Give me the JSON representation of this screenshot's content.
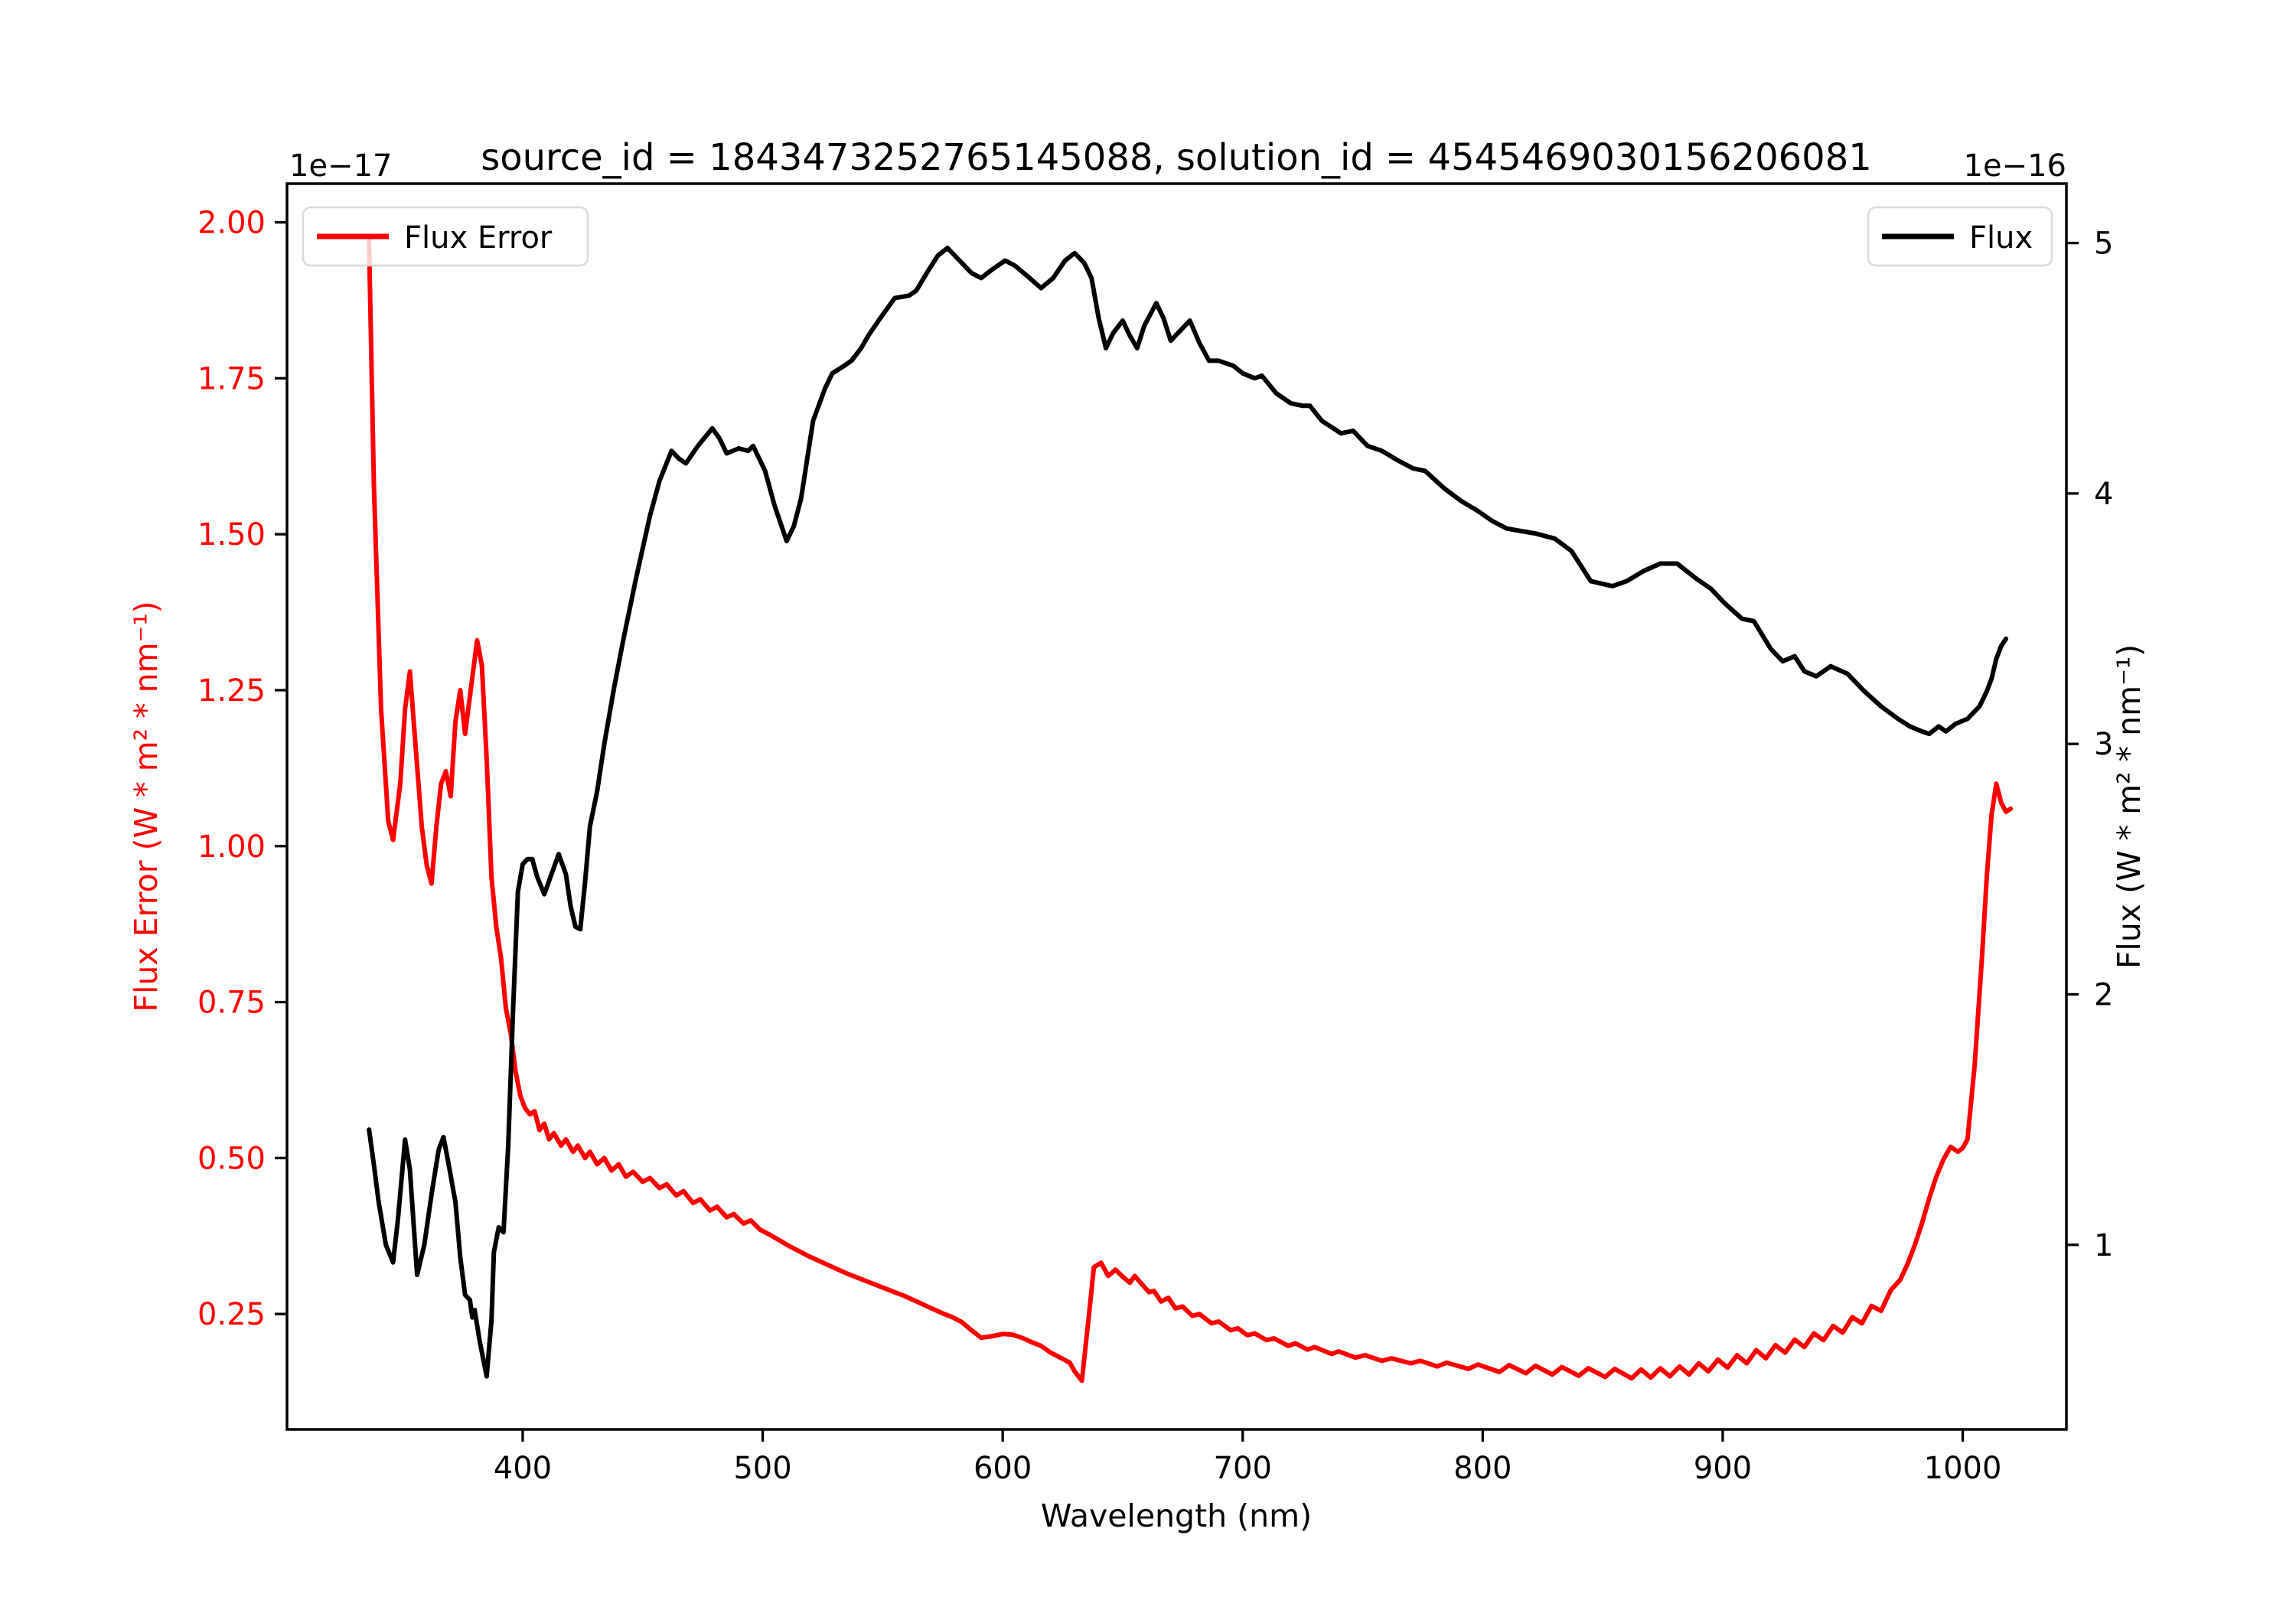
{
  "figure": {
    "background": "#ffffff",
    "title": "source_id = 1843473252765145088, solution_id = 4545469030156206081"
  },
  "chart_data": {
    "type": "line",
    "title": "source_id = 1843473252765145088, solution_id = 4545469030156206081",
    "xlabel": "Wavelength (nm)",
    "ylabel_left": "Flux Error (W * m² * nm⁻¹)",
    "ylabel_right": "Flux (W * m² * nm⁻¹)",
    "offset_text_left": "1e−17",
    "offset_text_right": "1e−16",
    "grid": false,
    "xlim": [
      301.8,
      1043.2
    ],
    "ylim_left": [
      0.065,
      2.062
    ],
    "ylim_right": [
      0.263,
      5.237
    ],
    "x_tick_values": [
      400,
      500,
      600,
      700,
      800,
      900,
      1000
    ],
    "x_tick_labels": [
      "400",
      "500",
      "600",
      "700",
      "800",
      "900",
      "1000"
    ],
    "y_tick_values_left": [
      2.0,
      1.75,
      1.5,
      1.25,
      1.0,
      0.75,
      0.5,
      0.25
    ],
    "y_tick_labels_left": [
      "2.00",
      "1.75",
      "1.50",
      "1.25",
      "1.00",
      "0.75",
      "0.50",
      "0.25"
    ],
    "y_tick_values_right": [
      5,
      4,
      3,
      2,
      1
    ],
    "y_tick_labels_right": [
      "5",
      "4",
      "3",
      "2",
      "1"
    ],
    "colors": {
      "flux_error": "#ff0000",
      "flux": "#000000",
      "left_tick_label": "#ff0000",
      "right_tick_label": "#000000",
      "legend_border": "#d9d9d9"
    },
    "legend_left": {
      "label": "Flux Error",
      "color": "#ff0000",
      "location": "upper left"
    },
    "legend_right": {
      "label": "Flux",
      "color": "#000000",
      "location": "upper right"
    },
    "series": [
      {
        "name": "Flux Error",
        "yaxis": "left",
        "color": "#ff0000",
        "unit_scale": "1e-17",
        "x": [
          336,
          338,
          341,
          344,
          346,
          349,
          351,
          353,
          355,
          358,
          360,
          362,
          364,
          366,
          368,
          370,
          372,
          374,
          376,
          378,
          381,
          383,
          385,
          387,
          389,
          391,
          393,
          395,
          397,
          399,
          401,
          403,
          405,
          407,
          409,
          411,
          413,
          416,
          418,
          421,
          423,
          426,
          428,
          431,
          434,
          437,
          440,
          443,
          446,
          450,
          453,
          457,
          460,
          464,
          467,
          471,
          474,
          478,
          481,
          485,
          488,
          492,
          495,
          499,
          503,
          507,
          511,
          515,
          519,
          523,
          527,
          531,
          535,
          539,
          543,
          547,
          551,
          555,
          559,
          563,
          567,
          571,
          575,
          579,
          583,
          587,
          591,
          595,
          600,
          604,
          608,
          612,
          616,
          620,
          624,
          628,
          630,
          633,
          636,
          638,
          641,
          644,
          647,
          650,
          653,
          655,
          658,
          661,
          663,
          666,
          669,
          672,
          675,
          679,
          682,
          687,
          690,
          695,
          698,
          702,
          705,
          710,
          713,
          719,
          722,
          727,
          730,
          737,
          740,
          747,
          751,
          758,
          762,
          770,
          774,
          781,
          785,
          794,
          798,
          807,
          811,
          818,
          822,
          829,
          833,
          840,
          844,
          851,
          855,
          862,
          866,
          870,
          874,
          878,
          882,
          886,
          890,
          894,
          898,
          902,
          906,
          910,
          914,
          918,
          922,
          926,
          930,
          934,
          938,
          942,
          946,
          950,
          954,
          958,
          962,
          966,
          970,
          974,
          977,
          980,
          983,
          986,
          989,
          992,
          995,
          998,
          1000,
          1002,
          1005,
          1008,
          1010,
          1012,
          1014,
          1016,
          1018,
          1020
        ],
        "y": [
          1.97,
          1.58,
          1.22,
          1.04,
          1.01,
          1.1,
          1.22,
          1.28,
          1.18,
          1.03,
          0.97,
          0.94,
          1.03,
          1.1,
          1.12,
          1.08,
          1.2,
          1.25,
          1.18,
          1.24,
          1.33,
          1.29,
          1.14,
          0.95,
          0.87,
          0.82,
          0.74,
          0.7,
          0.64,
          0.6,
          0.58,
          0.57,
          0.575,
          0.545,
          0.555,
          0.53,
          0.54,
          0.52,
          0.53,
          0.51,
          0.52,
          0.5,
          0.51,
          0.49,
          0.5,
          0.48,
          0.49,
          0.47,
          0.478,
          0.462,
          0.468,
          0.452,
          0.458,
          0.44,
          0.447,
          0.428,
          0.434,
          0.416,
          0.422,
          0.405,
          0.41,
          0.395,
          0.4,
          0.385,
          0.377,
          0.368,
          0.359,
          0.351,
          0.343,
          0.336,
          0.329,
          0.322,
          0.315,
          0.309,
          0.303,
          0.297,
          0.291,
          0.285,
          0.279,
          0.272,
          0.265,
          0.258,
          0.251,
          0.245,
          0.237,
          0.224,
          0.212,
          0.214,
          0.218,
          0.217,
          0.212,
          0.205,
          0.199,
          0.188,
          0.18,
          0.172,
          0.158,
          0.143,
          0.25,
          0.325,
          0.332,
          0.311,
          0.321,
          0.31,
          0.3,
          0.311,
          0.298,
          0.285,
          0.287,
          0.27,
          0.276,
          0.259,
          0.262,
          0.247,
          0.25,
          0.235,
          0.238,
          0.224,
          0.227,
          0.216,
          0.219,
          0.208,
          0.211,
          0.199,
          0.203,
          0.193,
          0.197,
          0.186,
          0.19,
          0.18,
          0.184,
          0.175,
          0.179,
          0.171,
          0.175,
          0.166,
          0.172,
          0.162,
          0.169,
          0.157,
          0.168,
          0.155,
          0.167,
          0.153,
          0.165,
          0.151,
          0.163,
          0.149,
          0.162,
          0.147,
          0.161,
          0.148,
          0.163,
          0.15,
          0.166,
          0.153,
          0.171,
          0.158,
          0.177,
          0.164,
          0.184,
          0.171,
          0.192,
          0.179,
          0.2,
          0.188,
          0.209,
          0.197,
          0.219,
          0.208,
          0.231,
          0.22,
          0.245,
          0.235,
          0.263,
          0.255,
          0.288,
          0.305,
          0.33,
          0.36,
          0.395,
          0.435,
          0.47,
          0.498,
          0.518,
          0.51,
          0.516,
          0.53,
          0.65,
          0.82,
          0.95,
          1.05,
          1.1,
          1.07,
          1.055,
          1.06
        ]
      },
      {
        "name": "Flux",
        "yaxis": "right",
        "color": "#000000",
        "unit_scale": "1e-16",
        "x": [
          336,
          338,
          340,
          343,
          346,
          348,
          351,
          353,
          356,
          359,
          362,
          365,
          367,
          369,
          372,
          374,
          376,
          378,
          379,
          380,
          382,
          385,
          387,
          388,
          390,
          392,
          394,
          396,
          398,
          400,
          402,
          404,
          406,
          409,
          412,
          415,
          418,
          420,
          422,
          424,
          426,
          428,
          431,
          434,
          438,
          442,
          447,
          450,
          453,
          457,
          462,
          465,
          468,
          473,
          479,
          482,
          485,
          490,
          494,
          496,
          501,
          505,
          510,
          513,
          516,
          521,
          526,
          529,
          534,
          537,
          541,
          544,
          549,
          555,
          561,
          564,
          569,
          573,
          577,
          581,
          587,
          591,
          595,
          601,
          605,
          610,
          616,
          621,
          626,
          630,
          634,
          637,
          640,
          643,
          646,
          650,
          653,
          656,
          659,
          664,
          667,
          670,
          674,
          678,
          682,
          686,
          690,
          696,
          700,
          705,
          708,
          714,
          720,
          725,
          728,
          733,
          741,
          746,
          752,
          758,
          765,
          771,
          776,
          784,
          791,
          798,
          804,
          810,
          816,
          822,
          830,
          837,
          845,
          854,
          860,
          867,
          874,
          881,
          889,
          895,
          901,
          908,
          913,
          920,
          925,
          930,
          934,
          939,
          945,
          952,
          959,
          966,
          973,
          978,
          983,
          986,
          990,
          993,
          997,
          1002,
          1007,
          1010,
          1012,
          1014,
          1016,
          1018
        ],
        "y": [
          1.46,
          1.32,
          1.17,
          1.0,
          0.93,
          1.1,
          1.42,
          1.3,
          0.88,
          1.0,
          1.2,
          1.38,
          1.43,
          1.33,
          1.17,
          0.95,
          0.8,
          0.78,
          0.71,
          0.74,
          0.62,
          0.475,
          0.7,
          0.97,
          1.07,
          1.05,
          1.4,
          1.94,
          2.41,
          2.52,
          2.54,
          2.54,
          2.47,
          2.4,
          2.48,
          2.56,
          2.48,
          2.35,
          2.27,
          2.26,
          2.45,
          2.67,
          2.81,
          3.0,
          3.22,
          3.42,
          3.65,
          3.78,
          3.91,
          4.05,
          4.17,
          4.14,
          4.12,
          4.19,
          4.26,
          4.22,
          4.16,
          4.18,
          4.17,
          4.19,
          4.09,
          3.95,
          3.81,
          3.87,
          3.98,
          4.29,
          4.42,
          4.48,
          4.51,
          4.53,
          4.58,
          4.63,
          4.7,
          4.78,
          4.79,
          4.81,
          4.89,
          4.95,
          4.98,
          4.94,
          4.88,
          4.86,
          4.89,
          4.93,
          4.91,
          4.87,
          4.82,
          4.86,
          4.93,
          4.96,
          4.92,
          4.86,
          4.7,
          4.58,
          4.64,
          4.69,
          4.63,
          4.58,
          4.67,
          4.76,
          4.7,
          4.61,
          4.65,
          4.69,
          4.6,
          4.53,
          4.53,
          4.51,
          4.48,
          4.46,
          4.47,
          4.4,
          4.36,
          4.35,
          4.35,
          4.29,
          4.24,
          4.25,
          4.19,
          4.17,
          4.13,
          4.1,
          4.09,
          4.02,
          3.97,
          3.93,
          3.89,
          3.86,
          3.85,
          3.84,
          3.82,
          3.77,
          3.65,
          3.63,
          3.65,
          3.69,
          3.72,
          3.72,
          3.66,
          3.62,
          3.56,
          3.5,
          3.49,
          3.38,
          3.33,
          3.35,
          3.29,
          3.27,
          3.31,
          3.28,
          3.21,
          3.15,
          3.1,
          3.07,
          3.05,
          3.04,
          3.07,
          3.05,
          3.08,
          3.1,
          3.15,
          3.21,
          3.26,
          3.34,
          3.39,
          3.42
        ]
      }
    ]
  }
}
